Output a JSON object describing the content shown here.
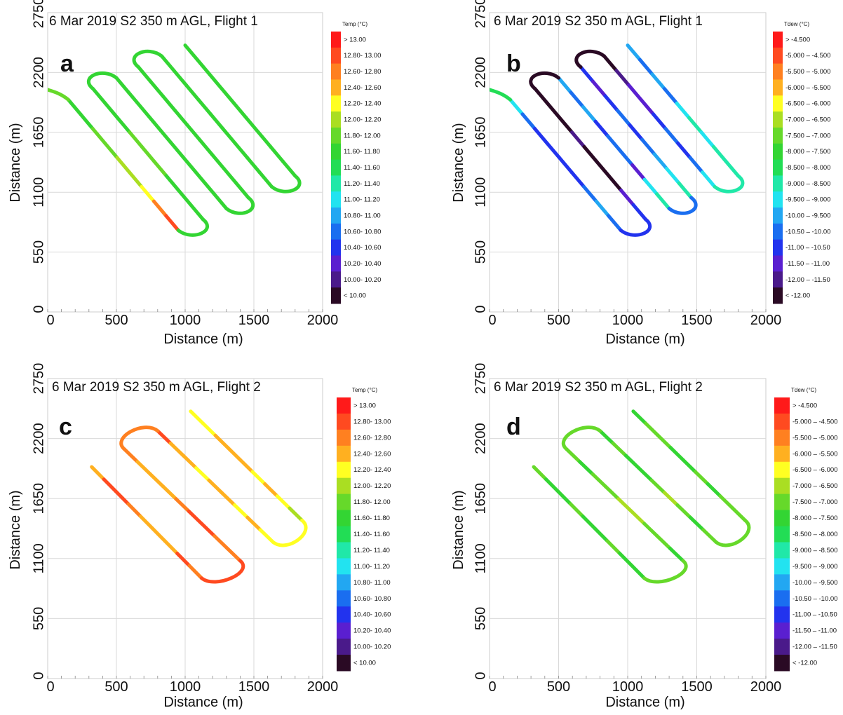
{
  "figure": {
    "colors": {
      "temp_scale": [
        "#2a0a24",
        "#4a1a8a",
        "#5a1fd0",
        "#2233ee",
        "#1a6ef0",
        "#22a7f2",
        "#22e3f0",
        "#20e8a8",
        "#22dd55",
        "#33d533",
        "#66d92a",
        "#aade22",
        "#ffff22",
        "#ffb020",
        "#ff8020",
        "#ff4a20",
        "#ff1a1a"
      ],
      "grid": "#d9d9d9",
      "axis": "#888888"
    }
  },
  "chart_data": [
    {
      "type": "scatter",
      "panel_letter": "a",
      "title": "6 Mar 2019 S2 350 m AGL, Flight 1",
      "xlabel": "Distance (m)",
      "ylabel": "Distance (m)",
      "xlim": [
        0,
        2000
      ],
      "ylim": [
        0,
        2750
      ],
      "x_ticks": [
        "0",
        "500",
        "1000",
        "1500",
        "2000"
      ],
      "y_ticks": [
        "0",
        "550",
        "1100",
        "1650",
        "2200",
        "2750"
      ],
      "grid": true,
      "legend": {
        "title": "Temp (°C)",
        "placement": "right",
        "labels": [
          "> 13.00",
          "12.80- 13.00",
          "12.60- 12.80",
          "12.40- 12.60",
          "12.20- 12.40",
          "12.00- 12.20",
          "11.80- 12.00",
          "11.60- 11.80",
          "11.40- 11.60",
          "11.20- 11.40",
          "11.00- 11.20",
          "10.80- 11.00",
          "10.60- 10.80",
          "10.40- 10.60",
          "10.20- 10.40",
          "10.00- 10.20",
          "< 10.00"
        ]
      },
      "track": {
        "line_x": [
          [
            150,
            950
          ],
          [
            330,
            1130
          ],
          [
            500,
            1300
          ],
          [
            660,
            1460
          ],
          [
            830,
            1630
          ],
          [
            1000,
            1800
          ]
        ],
        "line_y": [
          [
            1950,
            750
          ],
          [
            2050,
            850
          ],
          [
            2150,
            950
          ],
          [
            2250,
            1050
          ],
          [
            2350,
            1150
          ],
          [
            2450,
            1250
          ]
        ],
        "segment_classes": [
          [
            7,
            7,
            6,
            6,
            5,
            5,
            4,
            2,
            1
          ],
          [
            7,
            7,
            7,
            6,
            6,
            6,
            7,
            7,
            7
          ],
          [
            7,
            7,
            7,
            7,
            7,
            7,
            7,
            7,
            7
          ],
          [
            7,
            7,
            7,
            7,
            7,
            7,
            7,
            7,
            7
          ],
          [
            7,
            7,
            7,
            7,
            7,
            7,
            7,
            7,
            7
          ],
          [
            7,
            7,
            7,
            7,
            7,
            7,
            7,
            7,
            7
          ]
        ],
        "turn_classes": [
          7,
          7,
          7,
          7,
          7
        ],
        "lead_in_class": 6
      }
    },
    {
      "type": "scatter",
      "panel_letter": "b",
      "title": "6 Mar 2019 S2 350 m AGL, Flight 1",
      "xlabel": "Distance (m)",
      "ylabel": "Distance (m)",
      "xlim": [
        0,
        2000
      ],
      "ylim": [
        0,
        2750
      ],
      "x_ticks": [
        "0",
        "500",
        "1000",
        "1500",
        "2000"
      ],
      "y_ticks": [
        "0",
        "550",
        "1100",
        "1650",
        "2200",
        "2750"
      ],
      "grid": true,
      "legend": {
        "title": "Tdew (°C)",
        "placement": "right",
        "labels": [
          "> -4.500",
          "-5.000 – -4.500",
          "-5.500 – -5.000",
          "-6.000 – -5.500",
          "-6.500 – -6.000",
          "-7.000 – -6.500",
          "-7.500 – -7.000",
          "-8.000 – -7.500",
          "-8.500 – -8.000",
          "-9.000 – -8.500",
          "-9.500 – -9.000",
          "-10.00 – -9.500",
          "-10.50 – -10.00",
          "-11.00 – -10.50",
          "-11.50 – -11.00",
          "-12.00 – -11.50",
          "< -12.00"
        ]
      },
      "track": {
        "line_x": [
          [
            150,
            950
          ],
          [
            330,
            1130
          ],
          [
            500,
            1300
          ],
          [
            660,
            1460
          ],
          [
            830,
            1630
          ],
          [
            1000,
            1800
          ]
        ],
        "line_y": [
          [
            1950,
            750
          ],
          [
            2050,
            850
          ],
          [
            2150,
            950
          ],
          [
            2250,
            1050
          ],
          [
            2350,
            1150
          ],
          [
            2450,
            1250
          ]
        ],
        "segment_classes": [
          [
            10,
            12,
            13,
            13,
            13,
            13,
            12,
            11,
            12
          ],
          [
            16,
            16,
            16,
            15,
            16,
            16,
            16,
            14,
            13
          ],
          [
            11,
            12,
            11,
            13,
            12,
            12,
            14,
            10,
            9
          ],
          [
            13,
            14,
            13,
            12,
            13,
            12,
            11,
            10,
            9
          ],
          [
            16,
            15,
            14,
            14,
            13,
            12,
            13,
            12,
            10
          ],
          [
            11,
            12,
            11,
            12,
            10,
            9,
            10,
            9,
            9
          ]
        ],
        "turn_classes": [
          13,
          16,
          12,
          16,
          9
        ],
        "lead_in_class": 8
      }
    },
    {
      "type": "scatter",
      "panel_letter": "c",
      "title": "6 Mar 2019 S2 350 m AGL, Flight 2",
      "xlabel": "Distance (m)",
      "ylabel": "Distance (m)",
      "xlim": [
        0,
        2000
      ],
      "ylim": [
        0,
        2750
      ],
      "x_ticks": [
        "0",
        "500",
        "1000",
        "1500",
        "2000"
      ],
      "y_ticks": [
        "0",
        "550",
        "1100",
        "1650",
        "2200",
        "2750"
      ],
      "grid": true,
      "legend": {
        "title": "Temp (°C)",
        "placement": "right",
        "labels": [
          "> 13.00",
          "12.80- 13.00",
          "12.60- 12.80",
          "12.40- 12.60",
          "12.20- 12.40",
          "12.00- 12.20",
          "11.80- 12.00",
          "11.60- 11.80",
          "11.40- 11.60",
          "11.20- 11.40",
          "11.00- 11.20",
          "10.80- 11.00",
          "10.60- 10.80",
          "10.40- 10.60",
          "10.20- 10.40",
          "10.00- 10.20",
          "< 10.00"
        ]
      },
      "track": {
        "line_x": [
          [
            320,
            1120
          ],
          [
            560,
            1400
          ],
          [
            800,
            1640
          ],
          [
            1040,
            1850
          ]
        ],
        "line_y": [
          [
            1940,
            920
          ],
          [
            2100,
            1080
          ],
          [
            2270,
            1250
          ],
          [
            2450,
            1450
          ]
        ],
        "segment_classes": [
          [
            3,
            1,
            1,
            2,
            3,
            3,
            3,
            1,
            2
          ],
          [
            2,
            3,
            3,
            3,
            2,
            1,
            1,
            2,
            2
          ],
          [
            1,
            3,
            3,
            4,
            3,
            3,
            4,
            3,
            4
          ],
          [
            4,
            4,
            3,
            3,
            3,
            4,
            3,
            4,
            5
          ]
        ],
        "turn_classes": [
          1,
          2,
          4
        ]
      }
    },
    {
      "type": "scatter",
      "panel_letter": "d",
      "title": "6 Mar 2019 S2 350 m AGL, Flight 2",
      "xlabel": "Distance (m)",
      "ylabel": "Distance (m)",
      "xlim": [
        0,
        2000
      ],
      "ylim": [
        0,
        2750
      ],
      "x_ticks": [
        "0",
        "500",
        "1000",
        "1500",
        "2000"
      ],
      "y_ticks": [
        "0",
        "550",
        "1100",
        "1650",
        "2200",
        "2750"
      ],
      "grid": true,
      "legend": {
        "title": "Tdew (°C)",
        "placement": "right",
        "labels": [
          "> -4.500",
          "-5.000 – -4.500",
          "-5.500 – -5.000",
          "-6.000 – -5.500",
          "-6.500 – -6.000",
          "-7.000 – -6.500",
          "-7.500 – -7.000",
          "-8.000 – -7.500",
          "-8.500 – -8.000",
          "-9.000 – -8.500",
          "-9.500 – -9.000",
          "-10.00 – -9.500",
          "-10.50 – -10.00",
          "-11.00 – -10.50",
          "-11.50 – -11.00",
          "-12.00 – -11.50",
          "< -12.00"
        ]
      },
      "track": {
        "line_x": [
          [
            320,
            1120
          ],
          [
            560,
            1400
          ],
          [
            800,
            1640
          ],
          [
            1040,
            1850
          ]
        ],
        "line_y": [
          [
            1940,
            920
          ],
          [
            2100,
            1080
          ],
          [
            2270,
            1250
          ],
          [
            2450,
            1450
          ]
        ],
        "segment_classes": [
          [
            6,
            7,
            7,
            6,
            7,
            7,
            6,
            7,
            7
          ],
          [
            6,
            7,
            6,
            6,
            5,
            5,
            6,
            6,
            7
          ],
          [
            7,
            6,
            7,
            7,
            6,
            5,
            6,
            7,
            6
          ],
          [
            7,
            6,
            6,
            7,
            7,
            6,
            7,
            6,
            6
          ]
        ],
        "turn_classes": [
          6,
          6,
          6
        ]
      }
    }
  ]
}
